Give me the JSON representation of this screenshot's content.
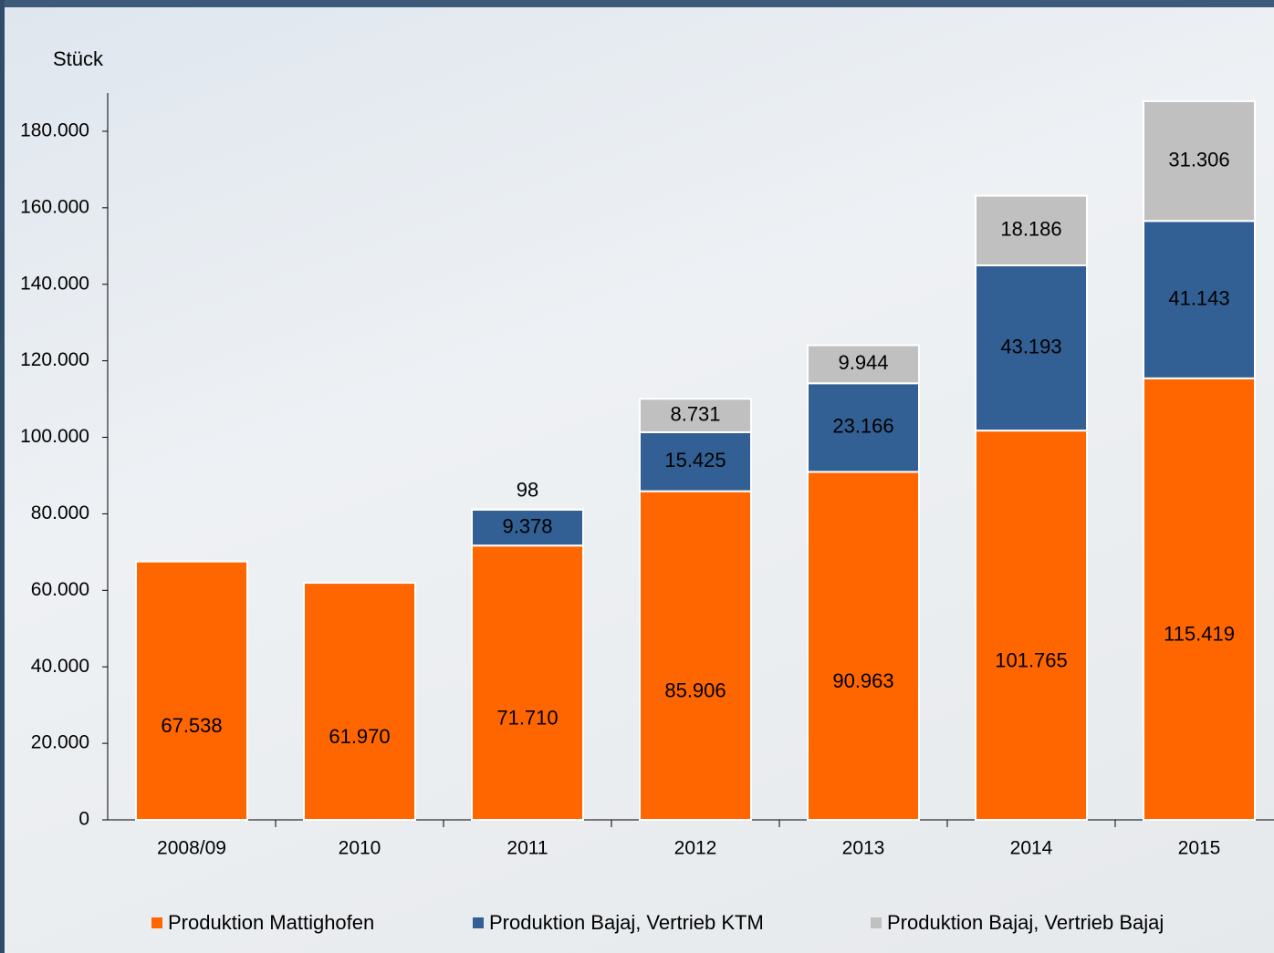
{
  "chart_data": {
    "type": "stacked_bar",
    "y_axis_label": "Stück",
    "categories": [
      "2008/09",
      "2010",
      "2011",
      "2012",
      "2013",
      "2014",
      "2015"
    ],
    "series": [
      {
        "name": "Produktion Mattighofen",
        "color": "#ff6600",
        "values": [
          67538,
          61970,
          71710,
          85906,
          90963,
          101765,
          115419
        ],
        "value_labels": [
          "67.538",
          "61.970",
          "71.710",
          "85.906",
          "90.963",
          "101.765",
          "115.419"
        ]
      },
      {
        "name": "Produktion Bajaj, Vertrieb KTM",
        "color": "#336094",
        "values": [
          null,
          null,
          9378,
          15425,
          23166,
          43193,
          41143
        ],
        "value_labels": [
          null,
          null,
          "9.378",
          "15.425",
          "23.166",
          "43.193",
          "41.143"
        ]
      },
      {
        "name": "Produktion Bajaj, Vertrieb Bajaj",
        "color": "#c0c0c0",
        "values": [
          null,
          null,
          98,
          8731,
          9944,
          18186,
          31306
        ],
        "value_labels": [
          null,
          null,
          "98",
          "8.731",
          "9.944",
          "18.186",
          "31.306"
        ]
      }
    ],
    "ylim": [
      0,
      190000
    ],
    "yticks": [
      0,
      {
        "value": 20000,
        "label": "20.000"
      },
      {
        "value": 40000,
        "label": "40.000"
      },
      {
        "value": 60000,
        "label": "60.000"
      },
      {
        "value": 80000,
        "label": "80.000"
      },
      {
        "value": 100000,
        "label": "100.000"
      },
      {
        "value": 120000,
        "label": "120.000"
      },
      {
        "value": 140000,
        "label": "140.000"
      },
      {
        "value": 160000,
        "label": "160.000"
      },
      {
        "value": 180000,
        "label": "180.000"
      }
    ],
    "legend": "bottom"
  }
}
